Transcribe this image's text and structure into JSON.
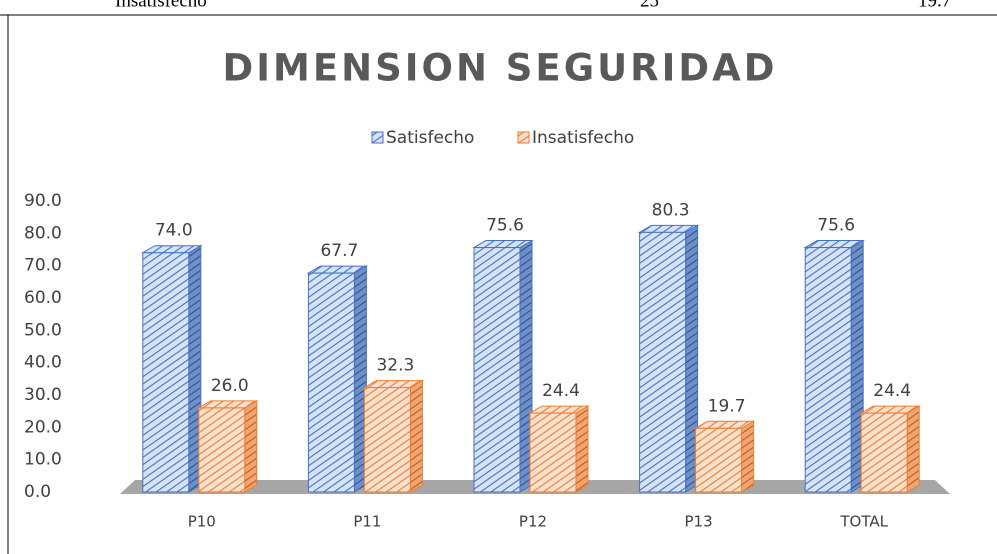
{
  "table_row": [
    "Insatisfecho",
    "25",
    "19.7"
  ],
  "chart_data": {
    "type": "bar3d",
    "title": "DIMENSION SEGURIDAD",
    "categories": [
      "P10",
      "P11",
      "P12",
      "P13",
      "TOTAL"
    ],
    "series": [
      {
        "name": "Satisfecho",
        "color": "#4472c4",
        "values": [
          74.0,
          67.7,
          75.6,
          80.3,
          75.6
        ],
        "value_labels": [
          "74.0",
          "67.7",
          "75.6",
          "80.3",
          "75.6"
        ]
      },
      {
        "name": "Insatisfecho",
        "color": "#ed7d31",
        "values": [
          26.0,
          32.3,
          24.4,
          19.7,
          24.4
        ],
        "value_labels": [
          "26.0",
          "32.3",
          "24.4",
          "19.7",
          "24.4"
        ]
      }
    ],
    "ylim": [
      0,
      90
    ],
    "yticks": [
      {
        "value": 0,
        "label": "0.0"
      },
      {
        "value": 10,
        "label": "10.0"
      },
      {
        "value": 20,
        "label": "20.0"
      },
      {
        "value": 30,
        "label": "30.0"
      },
      {
        "value": 40,
        "label": "40.0"
      },
      {
        "value": 50,
        "label": "50.0"
      },
      {
        "value": 60,
        "label": "60.0"
      },
      {
        "value": 70,
        "label": "70.0"
      },
      {
        "value": 80,
        "label": "80.0"
      },
      {
        "value": 90,
        "label": "90.0"
      }
    ],
    "legend": "top",
    "grid": false
  }
}
